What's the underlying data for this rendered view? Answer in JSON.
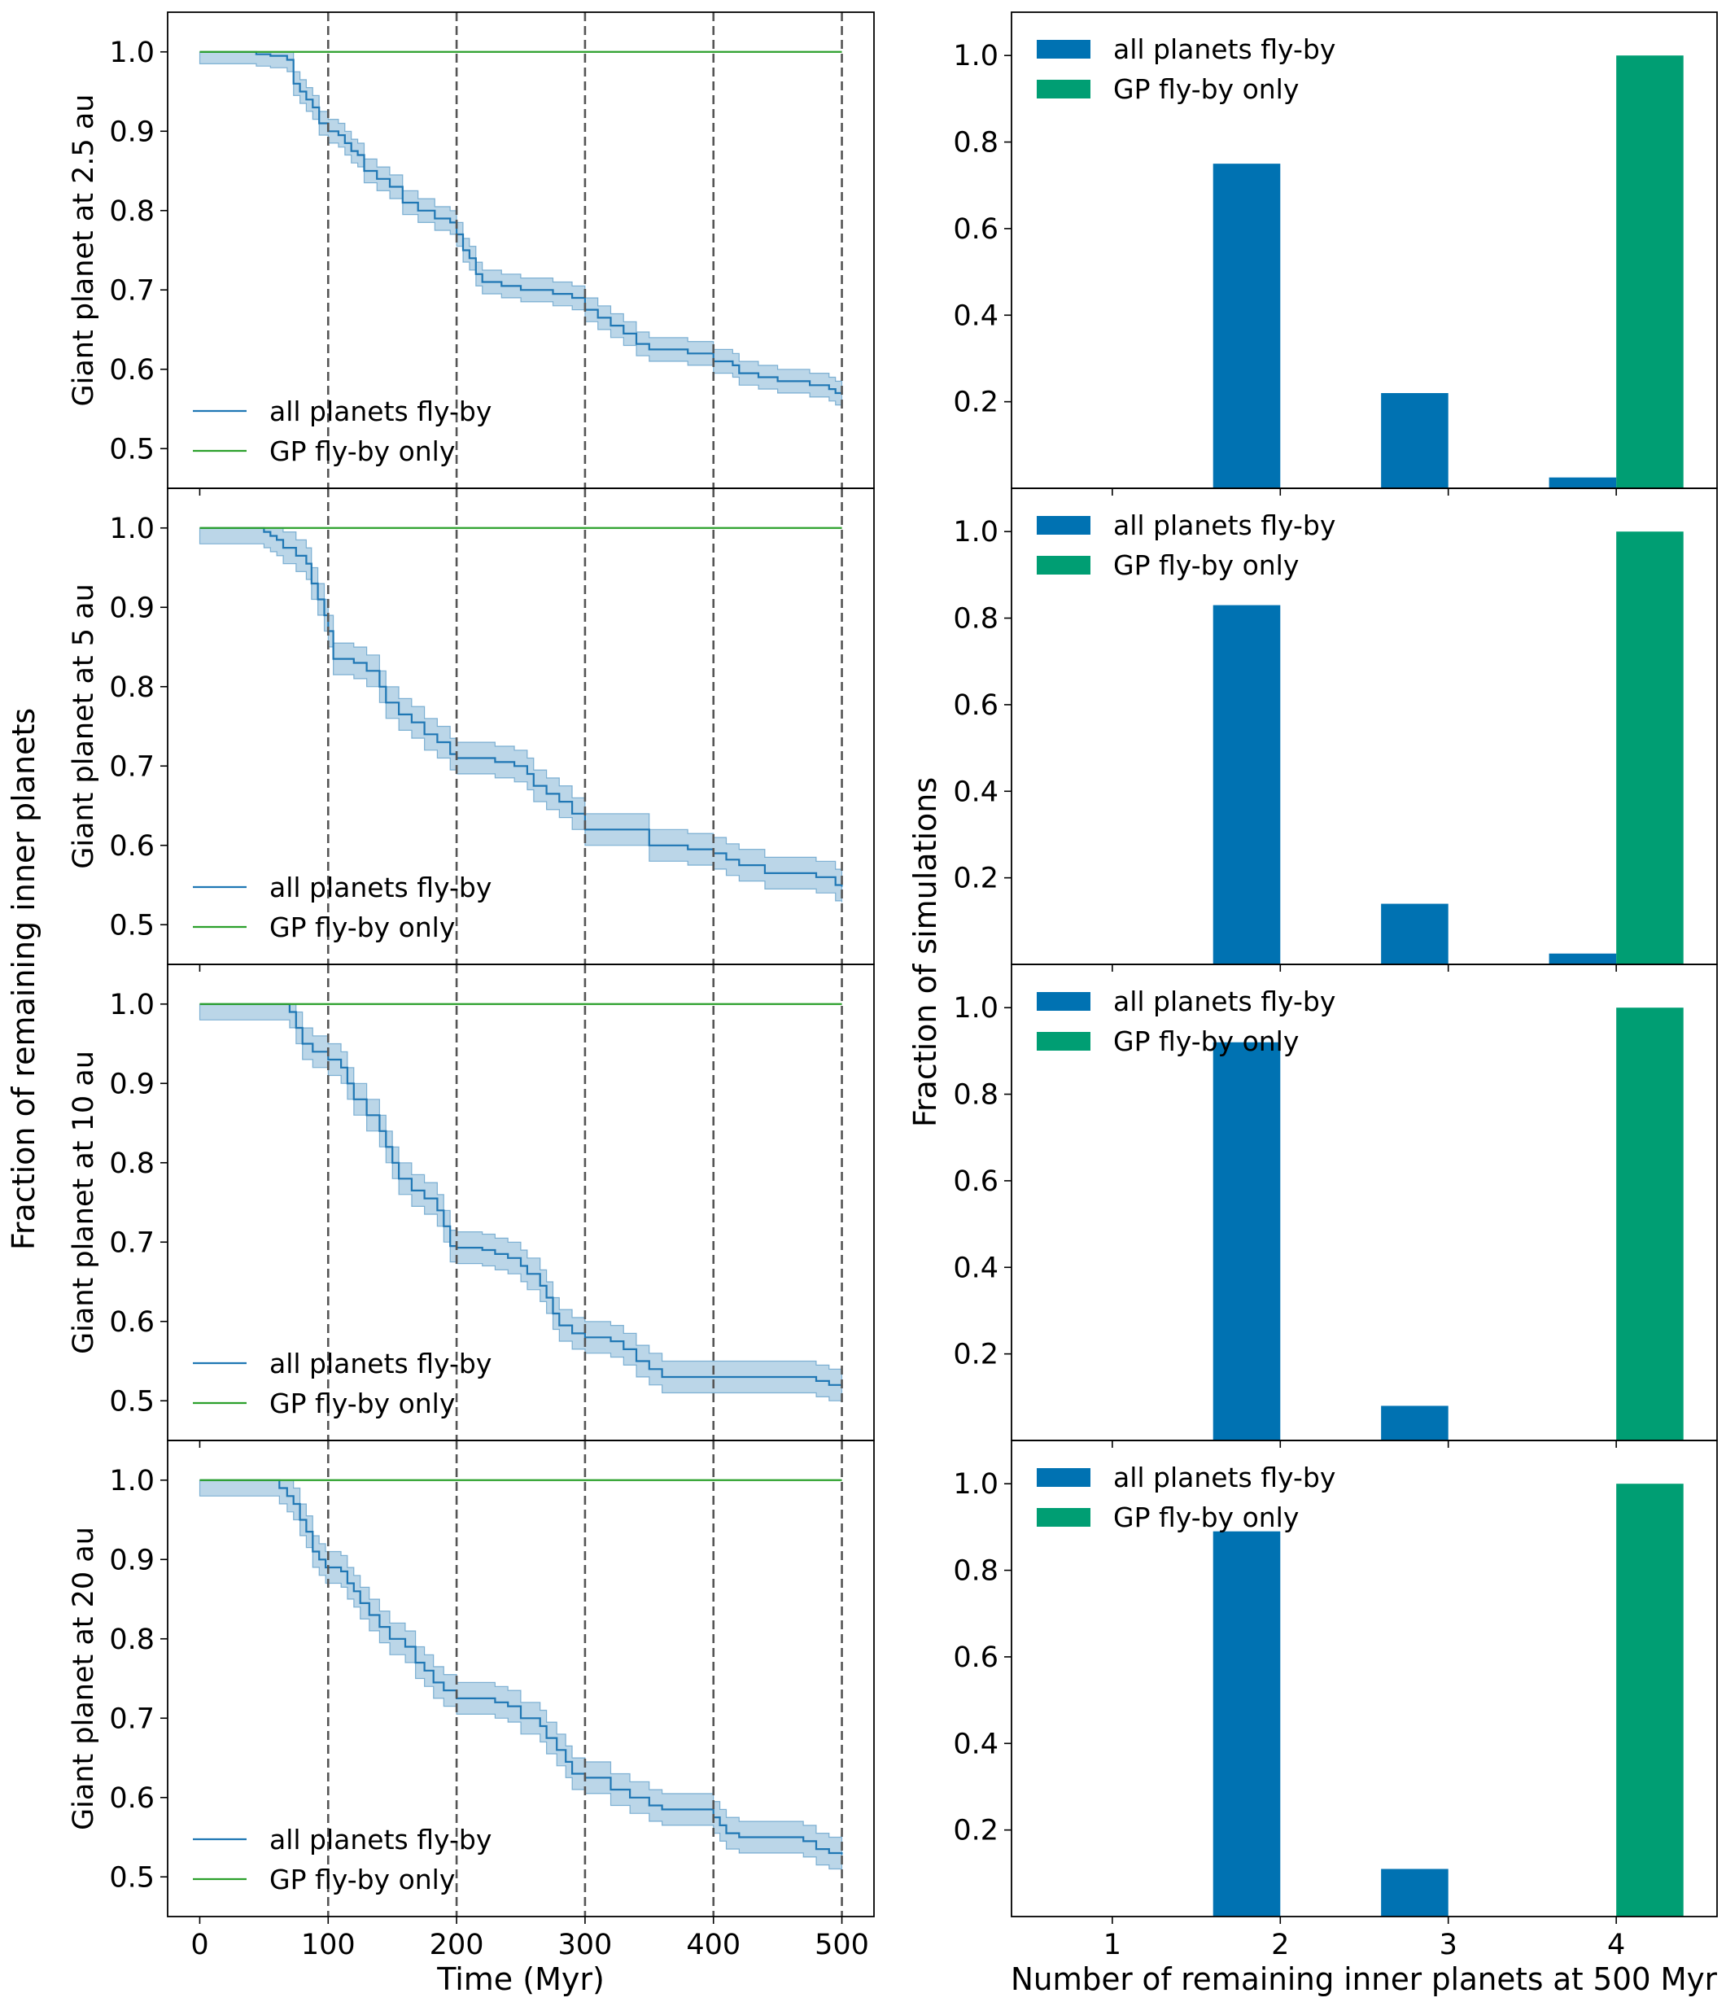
{
  "chart_data": {
    "type": "step-line-and-bar-panels",
    "colors": {
      "all_planets": "#1f77b4",
      "all_planets_band": "#1f77b4",
      "gp_line": "#2ca02c",
      "bar_all": "#0072b2",
      "bar_gp": "#009e73",
      "vline": "#555555"
    },
    "left_shared_ylabel": "Fraction of remaining inner planets",
    "left_xlabel": "Time (Myr)",
    "left_xticks": [
      "0",
      "100",
      "200",
      "300",
      "400",
      "500"
    ],
    "left_xlim": [
      -25,
      525
    ],
    "left_ylim": [
      0.45,
      1.05
    ],
    "left_yticks": [
      "0.5",
      "0.6",
      "0.7",
      "0.8",
      "0.9",
      "1.0"
    ],
    "vlines_x": [
      100,
      200,
      300,
      400,
      500
    ],
    "right_shared_ylabel": "Fraction of simulations",
    "right_xlabel": "Number of remaining inner planets at 500 Myr",
    "right_xticks": [
      "1",
      "2",
      "3",
      "4"
    ],
    "right_xlim": [
      0.4,
      4.6
    ],
    "right_ylim": [
      0,
      1.1
    ],
    "right_yticks": [
      "0.2",
      "0.4",
      "0.6",
      "0.8",
      "1.0"
    ],
    "legend_labels": [
      "all planets fly-by",
      "GP fly-by only"
    ],
    "line_panels": [
      {
        "ylabel": "Giant planet at 2.5 au",
        "gp_value": 1.0,
        "all": [
          [
            0,
            1.0
          ],
          [
            42,
            1.0
          ],
          [
            44,
            0.997
          ],
          [
            55,
            0.995
          ],
          [
            68,
            0.99
          ],
          [
            73,
            0.96
          ],
          [
            78,
            0.95
          ],
          [
            83,
            0.94
          ],
          [
            88,
            0.93
          ],
          [
            93,
            0.91
          ],
          [
            100,
            0.9
          ],
          [
            108,
            0.895
          ],
          [
            113,
            0.885
          ],
          [
            118,
            0.875
          ],
          [
            123,
            0.87
          ],
          [
            128,
            0.85
          ],
          [
            138,
            0.84
          ],
          [
            148,
            0.83
          ],
          [
            158,
            0.81
          ],
          [
            170,
            0.8
          ],
          [
            183,
            0.79
          ],
          [
            195,
            0.785
          ],
          [
            200,
            0.77
          ],
          [
            205,
            0.75
          ],
          [
            210,
            0.74
          ],
          [
            215,
            0.72
          ],
          [
            220,
            0.71
          ],
          [
            235,
            0.705
          ],
          [
            250,
            0.7
          ],
          [
            275,
            0.695
          ],
          [
            290,
            0.69
          ],
          [
            300,
            0.675
          ],
          [
            310,
            0.665
          ],
          [
            320,
            0.655
          ],
          [
            330,
            0.645
          ],
          [
            340,
            0.632
          ],
          [
            350,
            0.625
          ],
          [
            380,
            0.62
          ],
          [
            400,
            0.61
          ],
          [
            415,
            0.605
          ],
          [
            420,
            0.595
          ],
          [
            435,
            0.59
          ],
          [
            450,
            0.585
          ],
          [
            475,
            0.58
          ],
          [
            490,
            0.575
          ],
          [
            495,
            0.57
          ],
          [
            500,
            0.568
          ]
        ],
        "band": 0.015
      },
      {
        "ylabel": "Giant planet at 5 au",
        "gp_value": 1.0,
        "all": [
          [
            0,
            1.0
          ],
          [
            45,
            1.0
          ],
          [
            50,
            0.995
          ],
          [
            55,
            0.99
          ],
          [
            60,
            0.985
          ],
          [
            65,
            0.975
          ],
          [
            75,
            0.965
          ],
          [
            83,
            0.955
          ],
          [
            87,
            0.93
          ],
          [
            92,
            0.91
          ],
          [
            97,
            0.89
          ],
          [
            100,
            0.87
          ],
          [
            104,
            0.835
          ],
          [
            120,
            0.83
          ],
          [
            130,
            0.82
          ],
          [
            140,
            0.8
          ],
          [
            145,
            0.78
          ],
          [
            155,
            0.765
          ],
          [
            165,
            0.755
          ],
          [
            175,
            0.74
          ],
          [
            185,
            0.73
          ],
          [
            195,
            0.715
          ],
          [
            200,
            0.71
          ],
          [
            230,
            0.705
          ],
          [
            245,
            0.7
          ],
          [
            255,
            0.69
          ],
          [
            260,
            0.675
          ],
          [
            270,
            0.665
          ],
          [
            280,
            0.655
          ],
          [
            290,
            0.64
          ],
          [
            300,
            0.62
          ],
          [
            350,
            0.6
          ],
          [
            380,
            0.595
          ],
          [
            400,
            0.59
          ],
          [
            410,
            0.582
          ],
          [
            420,
            0.575
          ],
          [
            440,
            0.565
          ],
          [
            480,
            0.56
          ],
          [
            495,
            0.55
          ],
          [
            500,
            0.548
          ]
        ],
        "band": 0.02
      },
      {
        "ylabel": "Giant planet at 10 au",
        "gp_value": 1.0,
        "all": [
          [
            0,
            1.0
          ],
          [
            65,
            1.0
          ],
          [
            70,
            0.99
          ],
          [
            75,
            0.97
          ],
          [
            80,
            0.95
          ],
          [
            88,
            0.94
          ],
          [
            100,
            0.93
          ],
          [
            110,
            0.92
          ],
          [
            115,
            0.9
          ],
          [
            120,
            0.88
          ],
          [
            130,
            0.86
          ],
          [
            140,
            0.84
          ],
          [
            145,
            0.82
          ],
          [
            150,
            0.8
          ],
          [
            155,
            0.78
          ],
          [
            165,
            0.765
          ],
          [
            175,
            0.755
          ],
          [
            185,
            0.74
          ],
          [
            190,
            0.72
          ],
          [
            195,
            0.695
          ],
          [
            200,
            0.693
          ],
          [
            220,
            0.69
          ],
          [
            230,
            0.685
          ],
          [
            240,
            0.68
          ],
          [
            250,
            0.67
          ],
          [
            255,
            0.66
          ],
          [
            265,
            0.645
          ],
          [
            270,
            0.63
          ],
          [
            275,
            0.61
          ],
          [
            280,
            0.595
          ],
          [
            290,
            0.585
          ],
          [
            300,
            0.58
          ],
          [
            320,
            0.575
          ],
          [
            330,
            0.565
          ],
          [
            340,
            0.55
          ],
          [
            350,
            0.54
          ],
          [
            360,
            0.53
          ],
          [
            420,
            0.53
          ],
          [
            480,
            0.525
          ],
          [
            490,
            0.52
          ],
          [
            500,
            0.518
          ]
        ],
        "band": 0.02
      },
      {
        "ylabel": "Giant planet at 20 au",
        "gp_value": 1.0,
        "all": [
          [
            0,
            1.0
          ],
          [
            58,
            1.0
          ],
          [
            62,
            0.99
          ],
          [
            68,
            0.98
          ],
          [
            73,
            0.97
          ],
          [
            78,
            0.95
          ],
          [
            83,
            0.935
          ],
          [
            88,
            0.91
          ],
          [
            93,
            0.9
          ],
          [
            98,
            0.89
          ],
          [
            110,
            0.885
          ],
          [
            115,
            0.87
          ],
          [
            120,
            0.86
          ],
          [
            125,
            0.845
          ],
          [
            132,
            0.83
          ],
          [
            140,
            0.815
          ],
          [
            148,
            0.8
          ],
          [
            160,
            0.79
          ],
          [
            168,
            0.77
          ],
          [
            175,
            0.76
          ],
          [
            182,
            0.745
          ],
          [
            190,
            0.735
          ],
          [
            200,
            0.725
          ],
          [
            230,
            0.72
          ],
          [
            240,
            0.715
          ],
          [
            250,
            0.7
          ],
          [
            265,
            0.69
          ],
          [
            270,
            0.675
          ],
          [
            278,
            0.66
          ],
          [
            285,
            0.645
          ],
          [
            290,
            0.63
          ],
          [
            300,
            0.625
          ],
          [
            320,
            0.61
          ],
          [
            335,
            0.6
          ],
          [
            350,
            0.59
          ],
          [
            360,
            0.585
          ],
          [
            400,
            0.575
          ],
          [
            405,
            0.565
          ],
          [
            410,
            0.555
          ],
          [
            420,
            0.55
          ],
          [
            470,
            0.545
          ],
          [
            480,
            0.535
          ],
          [
            490,
            0.53
          ],
          [
            500,
            0.528
          ]
        ],
        "band": 0.02
      }
    ],
    "bar_panels": [
      {
        "all_values": [
          0.0,
          0.75,
          0.22,
          0.025
        ],
        "gp_values": [
          0.0,
          0.0,
          0.0,
          1.0
        ]
      },
      {
        "all_values": [
          0.0,
          0.83,
          0.14,
          0.025
        ],
        "gp_values": [
          0.0,
          0.0,
          0.0,
          1.0
        ]
      },
      {
        "all_values": [
          0.0,
          0.92,
          0.08,
          0.0
        ],
        "gp_values": [
          0.0,
          0.0,
          0.0,
          1.0
        ]
      },
      {
        "all_values": [
          0.0,
          0.89,
          0.11,
          0.0
        ],
        "gp_values": [
          0.0,
          0.0,
          0.0,
          1.0
        ]
      }
    ]
  }
}
